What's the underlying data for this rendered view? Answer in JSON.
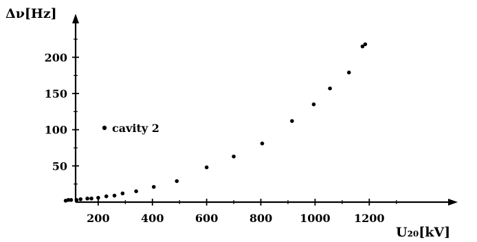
{
  "chart_data": {
    "type": "scatter",
    "xlabel": "U₂₀[kV]",
    "ylabel": "Δν[Hz]",
    "xlim": [
      0,
      1300
    ],
    "ylim": [
      0,
      240
    ],
    "xticks": [
      "200",
      "400",
      "600",
      "800",
      "1000",
      "1200"
    ],
    "xtick_values": [
      200,
      400,
      600,
      800,
      1000,
      1200
    ],
    "yticks": [
      "50",
      "100",
      "150",
      "200"
    ],
    "ytick_values": [
      50,
      100,
      150,
      200
    ],
    "legend": "top-left",
    "grid": false,
    "series": [
      {
        "name": "cavity 2",
        "points": [
          [
            80,
            2
          ],
          [
            90,
            3
          ],
          [
            100,
            3
          ],
          [
            120,
            3
          ],
          [
            135,
            4
          ],
          [
            160,
            5
          ],
          [
            175,
            5
          ],
          [
            200,
            6
          ],
          [
            230,
            8
          ],
          [
            260,
            9
          ],
          [
            290,
            12
          ],
          [
            340,
            15
          ],
          [
            405,
            21
          ],
          [
            490,
            29
          ],
          [
            600,
            48
          ],
          [
            700,
            63
          ],
          [
            805,
            81
          ],
          [
            915,
            112
          ],
          [
            995,
            135
          ],
          [
            1055,
            157
          ],
          [
            1125,
            179
          ],
          [
            1175,
            215
          ],
          [
            1185,
            218
          ]
        ]
      }
    ]
  }
}
